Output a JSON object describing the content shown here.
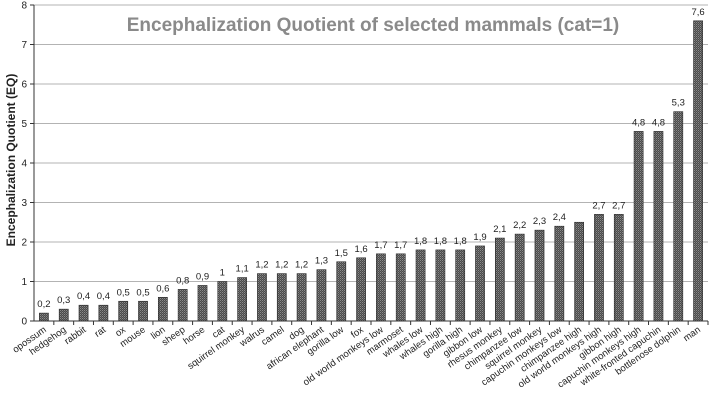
{
  "chart_data": {
    "type": "bar",
    "title": "Encephalization Quotient of selected mammals (cat=1)",
    "ylabel": "Encephalization Quotient (EQ)",
    "xlabel": "",
    "ylim": [
      0,
      8
    ],
    "yticks": [
      0,
      1,
      2,
      3,
      4,
      5,
      6,
      7,
      8
    ],
    "grid": true,
    "legend": "none",
    "bar_color": "#555555",
    "categories": [
      "opossum",
      "hedgehog",
      "rabbit",
      "rat",
      "ox",
      "mouse",
      "lion",
      "sheep",
      "horse",
      "cat",
      "squirrel monkey",
      "walrus",
      "camel",
      "dog",
      "african elephant",
      "gorilla low",
      "fox",
      "old world monkeys low",
      "marmoset",
      "whales low",
      "whales high",
      "gorilla high",
      "gibbon low",
      "rhesus monkey",
      "chimpanzee low",
      "squirrel monkey",
      "capuchin monkeys low",
      "chimpanzee high",
      "old world monkeys high",
      "gibbon high",
      "capuchin monkeys high",
      "white-fronted capuchin",
      "bottlenose dolphin",
      "man"
    ],
    "values": [
      0.2,
      0.3,
      0.4,
      0.4,
      0.5,
      0.5,
      0.6,
      0.8,
      0.9,
      1,
      1.1,
      1.2,
      1.2,
      1.2,
      1.3,
      1.5,
      1.6,
      1.7,
      1.7,
      1.8,
      1.8,
      1.8,
      1.9,
      2.1,
      2.2,
      2.3,
      2.4,
      2.5,
      2.7,
      2.7,
      4.8,
      4.8,
      5.3,
      7.6
    ],
    "data_labels": [
      "0,2",
      "0,3",
      "0,4",
      "0,4",
      "0,5",
      "0,5",
      "0,6",
      "0,8",
      "0,9",
      "1",
      "1,1",
      "1,2",
      "1,2",
      "1,2",
      "1,3",
      "1,5",
      "1,6",
      "1,7",
      "1,7",
      "1,8",
      "1,8",
      "1,8",
      "1,9",
      "2,1",
      "2,2",
      "2,3",
      "2,4",
      "",
      "2,7",
      "2,7",
      "4,8",
      "4,8",
      "5,3",
      "7,6"
    ]
  }
}
